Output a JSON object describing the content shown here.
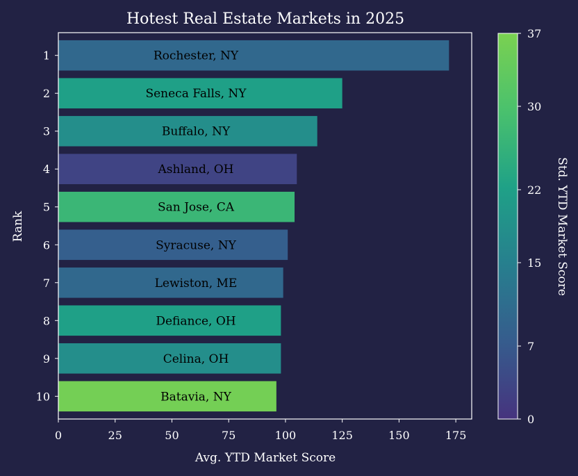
{
  "chart_data": {
    "type": "bar",
    "orientation": "horizontal",
    "title": "Hotest Real Estate Markets in 2025",
    "xlabel": "Avg. YTD Market Score",
    "ylabel": "Rank",
    "xlim": [
      0,
      182
    ],
    "xticks": [
      "0",
      "25",
      "50",
      "75",
      "100",
      "125",
      "150",
      "175"
    ],
    "categories": [
      "1",
      "2",
      "3",
      "4",
      "5",
      "6",
      "7",
      "8",
      "9",
      "10"
    ],
    "bar_labels": [
      "Rochester, NY",
      "Seneca Falls, NY",
      "Buffalo, NY",
      "Ashland, OH",
      "San Jose, CA",
      "Syracuse, NY",
      "Lewiston, ME",
      "Defiance, OH",
      "Celina, OH",
      "Batavia, NY"
    ],
    "values": [
      172,
      125,
      114,
      105,
      104,
      101,
      99,
      98,
      98,
      96
    ],
    "std_scores": [
      10,
      22,
      18,
      3,
      27,
      8,
      10,
      22,
      18,
      36
    ],
    "colorbar": {
      "label": "Std. YTD Market Score",
      "range": [
        0,
        37
      ],
      "ticks": [
        "0",
        "7",
        "15",
        "22",
        "30",
        "37"
      ],
      "colormap": "viridis-like",
      "colors": [
        "#46337e",
        "#365c8d",
        "#277f8e",
        "#1fa187",
        "#4ac16d",
        "#7ad151"
      ]
    },
    "grid": false,
    "legend": "none"
  }
}
